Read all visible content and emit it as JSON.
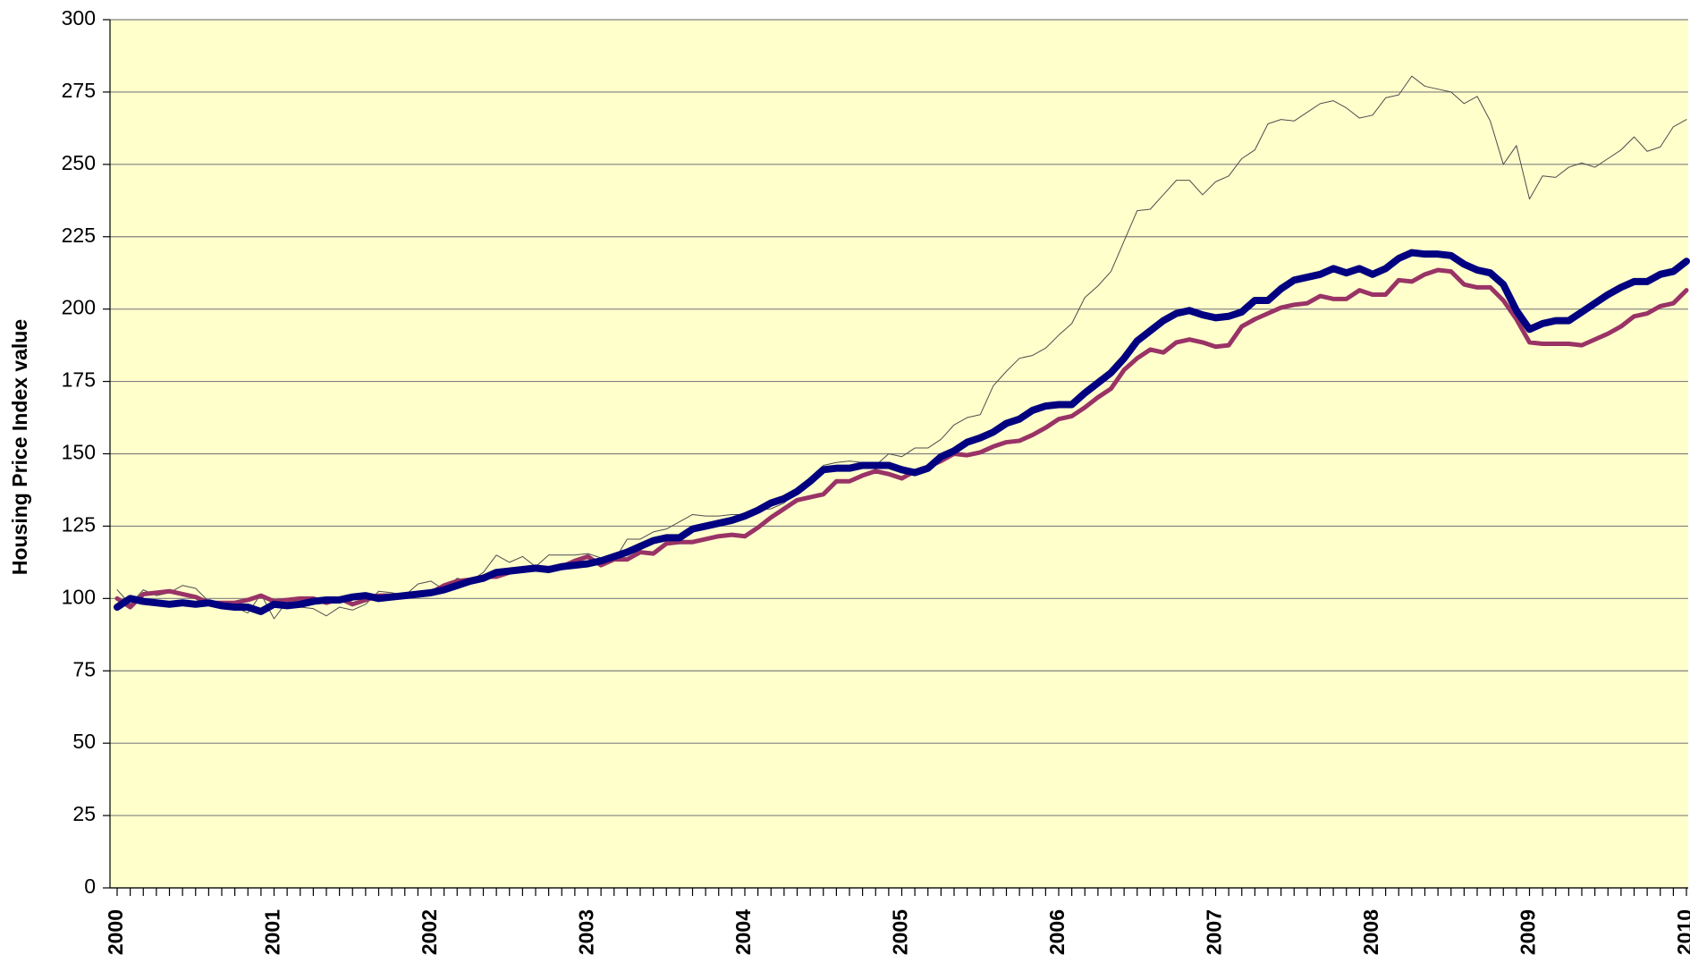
{
  "chart_data": {
    "type": "line",
    "y_label": "Housing Price Index value",
    "categories": [
      "2000",
      null,
      null,
      null,
      null,
      null,
      null,
      null,
      null,
      null,
      null,
      null,
      "2001",
      null,
      null,
      null,
      null,
      null,
      null,
      null,
      null,
      null,
      null,
      null,
      "2002",
      null,
      null,
      null,
      null,
      null,
      null,
      null,
      null,
      null,
      null,
      null,
      "2003",
      null,
      null,
      null,
      null,
      null,
      null,
      null,
      null,
      null,
      null,
      null,
      "2004",
      null,
      null,
      null,
      null,
      null,
      null,
      null,
      null,
      null,
      null,
      null,
      "2005",
      null,
      null,
      null,
      null,
      null,
      null,
      null,
      null,
      null,
      null,
      null,
      "2006",
      null,
      null,
      null,
      null,
      null,
      null,
      null,
      null,
      null,
      null,
      null,
      "2007",
      null,
      null,
      null,
      null,
      null,
      null,
      null,
      null,
      null,
      null,
      null,
      "2008",
      null,
      null,
      null,
      null,
      null,
      null,
      null,
      null,
      null,
      null,
      null,
      "2009",
      null,
      null,
      null,
      null,
      null,
      null,
      null,
      null,
      null,
      null,
      null,
      "2010"
    ],
    "ylim": [
      0,
      300
    ],
    "yticks": [
      0,
      25,
      50,
      75,
      100,
      125,
      150,
      175,
      200,
      225,
      250,
      275,
      300
    ],
    "grid": true,
    "background": "#ffffcc",
    "series": [
      {
        "color": "#4d4d4d",
        "width": 1,
        "values": [
          103,
          98,
          103,
          101,
          102,
          104.5,
          103.5,
          99,
          97,
          97,
          95,
          101.5,
          93,
          99,
          97,
          96.5,
          94,
          97,
          96,
          98,
          102.5,
          102,
          101,
          105,
          106,
          103,
          107,
          106,
          109,
          115,
          112.5,
          114.5,
          111,
          115,
          115,
          115,
          115.5,
          114,
          113,
          120.5,
          120.5,
          123,
          124,
          126.5,
          129,
          128.5,
          128.5,
          129,
          129,
          130.5,
          131,
          133,
          137,
          141.5,
          146,
          147,
          147.5,
          147,
          146,
          150,
          149,
          152,
          152,
          155,
          160,
          162.5,
          163.5,
          173.5,
          178.5,
          183,
          184,
          186.5,
          191,
          195,
          204,
          208,
          213,
          223.5,
          234,
          234.5,
          239.5,
          244.5,
          244.5,
          239.5,
          244,
          246,
          252,
          255,
          264,
          265.5,
          265,
          268,
          271,
          272,
          269.5,
          266,
          267,
          273,
          274,
          280.5,
          277,
          276,
          275,
          271,
          273.5,
          265,
          250,
          256.5,
          238,
          246,
          245.5,
          249,
          250.5,
          249,
          252,
          255,
          259.5,
          254.5,
          256,
          263,
          265.5
        ]
      },
      {
        "color": "#993366",
        "width": 5,
        "values": [
          100,
          97,
          101.5,
          102,
          102.5,
          101.5,
          100.5,
          98.5,
          98.5,
          98.5,
          99.5,
          101,
          99,
          99.5,
          100,
          100,
          98.5,
          100,
          98,
          99.5,
          101,
          101,
          101,
          101.5,
          102,
          104.5,
          106,
          106.5,
          107.5,
          107.5,
          109,
          110,
          110,
          110.5,
          111,
          113,
          114.5,
          111.5,
          113.5,
          113.5,
          116,
          115.5,
          119,
          119.5,
          119.5,
          120.5,
          121.5,
          122,
          121.5,
          124.5,
          128,
          131,
          134,
          135,
          136,
          140.5,
          140.5,
          142.5,
          144,
          143,
          141.5,
          144,
          145.5,
          147.5,
          150,
          149.5,
          150.5,
          152.5,
          154,
          154.5,
          156.5,
          159,
          162,
          163,
          166,
          169.5,
          172.5,
          179,
          183,
          186,
          185,
          188.5,
          189.5,
          188.5,
          187,
          187.5,
          194,
          196.5,
          198.5,
          200.5,
          201.5,
          202,
          204.5,
          203.5,
          203.5,
          206.5,
          205,
          205,
          210,
          209.5,
          212,
          213.5,
          213,
          208.5,
          207.5,
          207.5,
          203,
          196.5,
          188.5,
          188,
          188,
          188,
          187.5,
          189.5,
          191.5,
          194,
          197.5,
          198.5,
          201,
          202,
          206.5
        ]
      },
      {
        "color": "#000080",
        "width": 8,
        "values": [
          97,
          100,
          99,
          98.5,
          98,
          98.5,
          98,
          98.5,
          97.5,
          97,
          97,
          95.5,
          98,
          97.5,
          98,
          99,
          99.5,
          99.5,
          100.5,
          101,
          100,
          100.5,
          101,
          101.5,
          102,
          103,
          104.5,
          106,
          107,
          109,
          109.5,
          110,
          110.5,
          110,
          111,
          111.5,
          112,
          113,
          114.5,
          116,
          118,
          120,
          121,
          121,
          124,
          125,
          126,
          127,
          128.5,
          130.5,
          133,
          134.5,
          137,
          140.5,
          144.5,
          145,
          145,
          146,
          146,
          146,
          144.5,
          143.5,
          145,
          149,
          151,
          154,
          155.5,
          157.5,
          160.5,
          162,
          165,
          166.5,
          167,
          167,
          171,
          174.5,
          178,
          183,
          189,
          192.5,
          196,
          198.5,
          199.5,
          198,
          197,
          197.5,
          199,
          203,
          203,
          207,
          210,
          211,
          212,
          214,
          212.5,
          214,
          212,
          214,
          217.5,
          219.5,
          219,
          219,
          218.5,
          215.5,
          213.5,
          212.5,
          208.5,
          199.5,
          193,
          195,
          196,
          196,
          199,
          202,
          205,
          207.5,
          209.5,
          209.5,
          212,
          213,
          216.5
        ]
      }
    ]
  }
}
